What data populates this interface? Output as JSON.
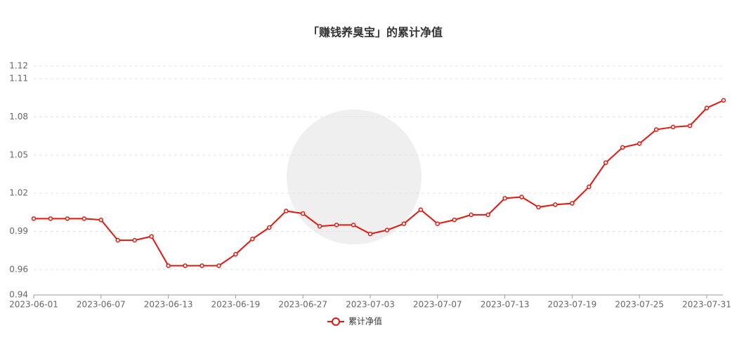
{
  "chart_data": {
    "type": "line",
    "title": "「赚钱养臭宝」的累计净值",
    "categories": [
      "2023-06-01",
      null,
      null,
      null,
      "2023-06-07",
      null,
      null,
      null,
      "2023-06-13",
      null,
      null,
      null,
      "2023-06-19",
      null,
      null,
      null,
      "2023-06-27",
      null,
      null,
      null,
      "2023-07-03",
      null,
      null,
      null,
      "2023-07-07",
      null,
      null,
      null,
      "2023-07-13",
      null,
      null,
      null,
      "2023-07-19",
      null,
      null,
      null,
      "2023-07-25",
      null,
      null,
      null,
      "2023-07-31",
      null
    ],
    "series": [
      {
        "name": "累计净值",
        "color": "#e3170d",
        "values": [
          1.0,
          1.0,
          1.0,
          1.0,
          0.999,
          0.983,
          0.983,
          0.986,
          0.963,
          0.963,
          0.963,
          0.963,
          0.972,
          0.984,
          0.993,
          1.006,
          1.004,
          0.994,
          0.995,
          0.995,
          0.988,
          0.991,
          0.996,
          1.007,
          0.996,
          0.999,
          1.003,
          1.003,
          1.016,
          1.017,
          1.009,
          1.011,
          1.012,
          1.025,
          1.044,
          1.056,
          1.059,
          1.07,
          1.072,
          1.073,
          1.087,
          1.093
        ]
      }
    ],
    "ylim": [
      0.94,
      1.12
    ],
    "yticks": [
      0.94,
      0.96,
      0.99,
      1.02,
      1.05,
      1.08,
      1.11,
      1.12
    ],
    "grid": true
  }
}
